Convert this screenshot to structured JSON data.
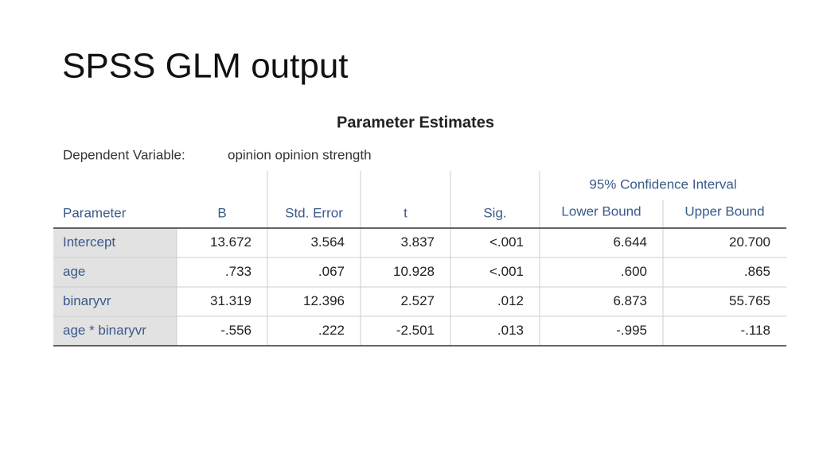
{
  "title": "SPSS GLM output",
  "table": {
    "title": "Parameter Estimates",
    "dependent_label": "Dependent Variable:",
    "dependent_value": "opinion opinion strength",
    "group_header": "95% Confidence Interval",
    "columns": [
      "Parameter",
      "B",
      "Std. Error",
      "t",
      "Sig.",
      "Lower Bound",
      "Upper Bound"
    ],
    "rows": [
      [
        "Intercept",
        "13.672",
        "3.564",
        "3.837",
        "<.001",
        "6.644",
        "20.700"
      ],
      [
        "age",
        ".733",
        ".067",
        "10.928",
        "<.001",
        ".600",
        ".865"
      ],
      [
        "binaryvr",
        "31.319",
        "12.396",
        "2.527",
        ".012",
        "6.873",
        "55.765"
      ],
      [
        "age * binaryvr",
        "-.556",
        ".222",
        "-2.501",
        ".013",
        "-.995",
        "-.118"
      ]
    ]
  }
}
